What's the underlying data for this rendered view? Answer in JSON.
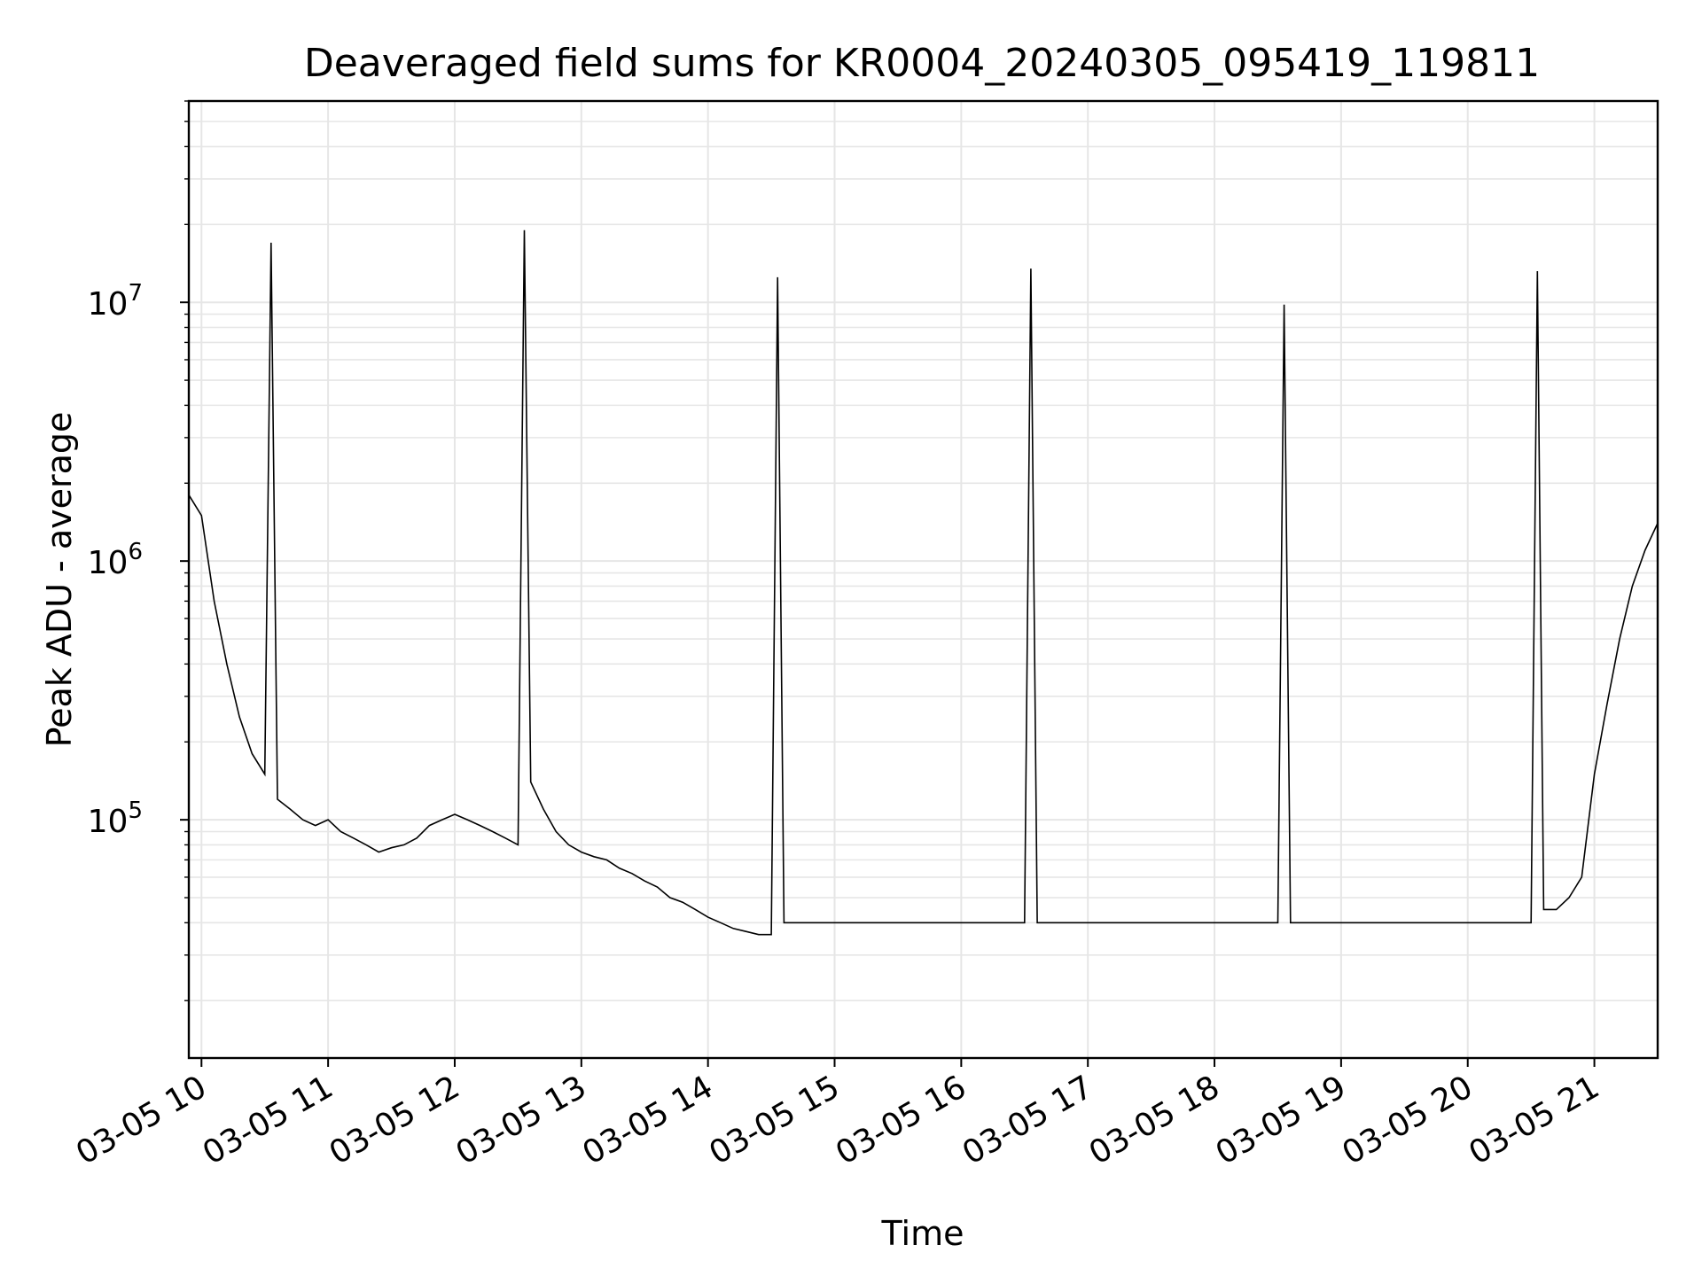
{
  "chart_data": {
    "type": "line",
    "title": "Deaveraged field sums for KR0004_20240305_095419_119811",
    "xlabel": "Time",
    "ylabel": "Peak ADU - average",
    "yscale": "log",
    "grid": true,
    "legend": "none",
    "line_color": "#000000",
    "grid_color": "#e6e6e6",
    "xlim": [
      "2024-03-05T09:54",
      "2024-03-05T21:30"
    ],
    "ylim": [
      12000,
      60000000
    ],
    "x_ticks": [
      {
        "t": "2024-03-05T10:00",
        "label": "03-05 10"
      },
      {
        "t": "2024-03-05T11:00",
        "label": "03-05 11"
      },
      {
        "t": "2024-03-05T12:00",
        "label": "03-05 12"
      },
      {
        "t": "2024-03-05T13:00",
        "label": "03-05 13"
      },
      {
        "t": "2024-03-05T14:00",
        "label": "03-05 14"
      },
      {
        "t": "2024-03-05T15:00",
        "label": "03-05 15"
      },
      {
        "t": "2024-03-05T16:00",
        "label": "03-05 16"
      },
      {
        "t": "2024-03-05T17:00",
        "label": "03-05 17"
      },
      {
        "t": "2024-03-05T18:00",
        "label": "03-05 18"
      },
      {
        "t": "2024-03-05T19:00",
        "label": "03-05 19"
      },
      {
        "t": "2024-03-05T20:00",
        "label": "03-05 20"
      },
      {
        "t": "2024-03-05T21:00",
        "label": "03-05 21"
      }
    ],
    "y_ticks": [
      {
        "value": 100000,
        "base": "10",
        "exp": "5"
      },
      {
        "value": 1000000,
        "base": "10",
        "exp": "6"
      },
      {
        "value": 10000000,
        "base": "10",
        "exp": "7"
      }
    ],
    "series": [
      {
        "x": [
          "2024-03-05T09:54",
          "2024-03-05T10:00",
          "2024-03-05T10:06",
          "2024-03-05T10:12",
          "2024-03-05T10:18",
          "2024-03-05T10:24",
          "2024-03-05T10:30",
          "2024-03-05T10:33",
          "2024-03-05T10:36",
          "2024-03-05T10:42",
          "2024-03-05T10:48",
          "2024-03-05T10:54",
          "2024-03-05T11:00",
          "2024-03-05T11:06",
          "2024-03-05T11:12",
          "2024-03-05T11:18",
          "2024-03-05T11:24",
          "2024-03-05T11:30",
          "2024-03-05T11:36",
          "2024-03-05T11:42",
          "2024-03-05T11:48",
          "2024-03-05T11:54",
          "2024-03-05T12:00",
          "2024-03-05T12:06",
          "2024-03-05T12:12",
          "2024-03-05T12:18",
          "2024-03-05T12:24",
          "2024-03-05T12:30",
          "2024-03-05T12:33",
          "2024-03-05T12:36",
          "2024-03-05T12:42",
          "2024-03-05T12:48",
          "2024-03-05T12:54",
          "2024-03-05T13:00",
          "2024-03-05T13:06",
          "2024-03-05T13:12",
          "2024-03-05T13:18",
          "2024-03-05T13:24",
          "2024-03-05T13:30",
          "2024-03-05T13:36",
          "2024-03-05T13:42",
          "2024-03-05T13:48",
          "2024-03-05T13:54",
          "2024-03-05T14:00",
          "2024-03-05T14:06",
          "2024-03-05T14:12",
          "2024-03-05T14:18",
          "2024-03-05T14:24",
          "2024-03-05T14:30",
          "2024-03-05T14:33",
          "2024-03-05T14:36",
          "2024-03-05T14:42",
          "2024-03-05T14:48",
          "2024-03-05T14:54",
          "2024-03-05T15:00",
          "2024-03-05T15:06",
          "2024-03-05T15:12",
          "2024-03-05T15:18",
          "2024-03-05T15:24",
          "2024-03-05T15:30",
          "2024-03-05T15:36",
          "2024-03-05T15:42",
          "2024-03-05T15:48",
          "2024-03-05T15:54",
          "2024-03-05T16:00",
          "2024-03-05T16:06",
          "2024-03-05T16:12",
          "2024-03-05T16:18",
          "2024-03-05T16:24",
          "2024-03-05T16:30",
          "2024-03-05T16:33",
          "2024-03-05T16:36",
          "2024-03-05T16:42",
          "2024-03-05T16:48",
          "2024-03-05T16:54",
          "2024-03-05T17:00",
          "2024-03-05T17:06",
          "2024-03-05T17:12",
          "2024-03-05T17:18",
          "2024-03-05T17:24",
          "2024-03-05T17:30",
          "2024-03-05T17:36",
          "2024-03-05T17:42",
          "2024-03-05T17:48",
          "2024-03-05T17:54",
          "2024-03-05T18:00",
          "2024-03-05T18:06",
          "2024-03-05T18:12",
          "2024-03-05T18:18",
          "2024-03-05T18:24",
          "2024-03-05T18:30",
          "2024-03-05T18:33",
          "2024-03-05T18:36",
          "2024-03-05T18:42",
          "2024-03-05T18:48",
          "2024-03-05T18:54",
          "2024-03-05T19:00",
          "2024-03-05T19:06",
          "2024-03-05T19:12",
          "2024-03-05T19:18",
          "2024-03-05T19:24",
          "2024-03-05T19:30",
          "2024-03-05T19:36",
          "2024-03-05T19:42",
          "2024-03-05T19:48",
          "2024-03-05T19:54",
          "2024-03-05T20:00",
          "2024-03-05T20:06",
          "2024-03-05T20:12",
          "2024-03-05T20:18",
          "2024-03-05T20:24",
          "2024-03-05T20:30",
          "2024-03-05T20:33",
          "2024-03-05T20:36",
          "2024-03-05T20:42",
          "2024-03-05T20:48",
          "2024-03-05T20:54",
          "2024-03-05T21:00",
          "2024-03-05T21:06",
          "2024-03-05T21:12",
          "2024-03-05T21:18",
          "2024-03-05T21:24",
          "2024-03-05T21:30"
        ],
        "y": [
          1800000,
          1500000,
          700000,
          400000,
          250000,
          180000,
          150000,
          17000000,
          120000,
          110000,
          100000,
          95000,
          100000,
          90000,
          85000,
          80000,
          75000,
          78000,
          80000,
          85000,
          95000,
          100000,
          105000,
          100000,
          95000,
          90000,
          85000,
          80000,
          19000000,
          140000,
          110000,
          90000,
          80000,
          75000,
          72000,
          70000,
          65000,
          62000,
          58000,
          55000,
          50000,
          48000,
          45000,
          42000,
          40000,
          38000,
          37000,
          36000,
          36000,
          12500000,
          40000,
          40000,
          40000,
          40000,
          40000,
          40000,
          40000,
          40000,
          40000,
          40000,
          40000,
          40000,
          40000,
          40000,
          40000,
          40000,
          40000,
          40000,
          40000,
          40000,
          13500000,
          40000,
          40000,
          40000,
          40000,
          40000,
          40000,
          40000,
          40000,
          40000,
          40000,
          40000,
          40000,
          40000,
          40000,
          40000,
          40000,
          40000,
          40000,
          40000,
          40000,
          9800000,
          40000,
          40000,
          40000,
          40000,
          40000,
          40000,
          40000,
          40000,
          40000,
          40000,
          40000,
          40000,
          40000,
          40000,
          40000,
          40000,
          40000,
          40000,
          40000,
          40000,
          13200000,
          45000,
          45000,
          50000,
          60000,
          150000,
          280000,
          500000,
          800000,
          1100000,
          1400000
        ]
      }
    ]
  }
}
